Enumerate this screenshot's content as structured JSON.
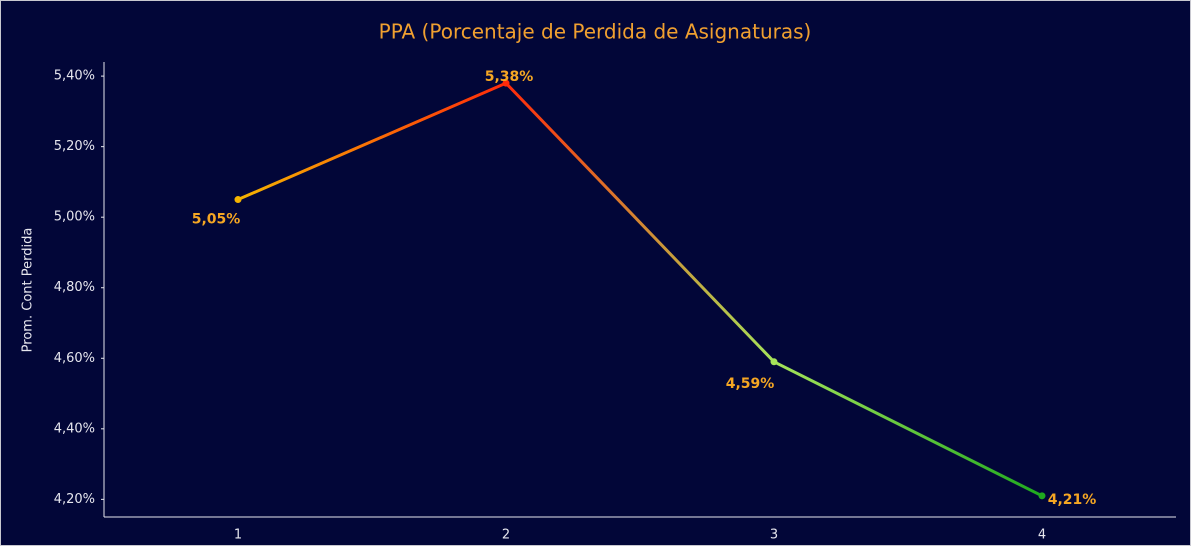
{
  "chart_data": {
    "type": "line",
    "title": "PPA (Porcentaje de Perdida de Asignaturas)",
    "y_label": "Prom. Cont Perdida",
    "categories": [
      "1",
      "2",
      "3",
      "4"
    ],
    "values": [
      5.05,
      5.38,
      4.59,
      4.21
    ],
    "value_labels": [
      "5,05%",
      "5,38%",
      "4,59%",
      "4,21%"
    ],
    "colors": [
      "#f5b400",
      "#ff2a0a",
      "#a6e35a",
      "#1faa1f"
    ],
    "ylim": [
      4.15,
      5.44
    ],
    "yticks": [
      {
        "value": 4.2,
        "label": "4,20%"
      },
      {
        "value": 4.4,
        "label": "4,40%"
      },
      {
        "value": 4.6,
        "label": "4,60%"
      },
      {
        "value": 4.8,
        "label": "4,80%"
      },
      {
        "value": 5.0,
        "label": "5,00%"
      },
      {
        "value": 5.2,
        "label": "5,20%"
      },
      {
        "value": 5.4,
        "label": "5,40%"
      }
    ],
    "grid": false
  }
}
